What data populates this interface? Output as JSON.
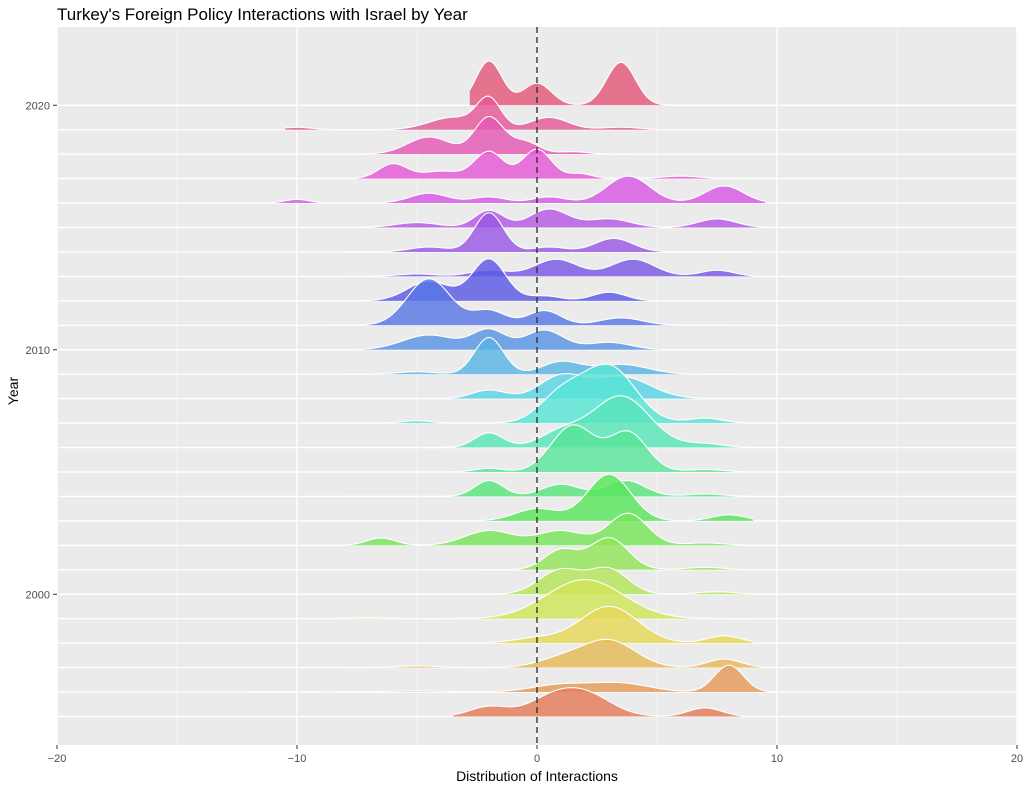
{
  "chart_data": {
    "type": "area",
    "subtype": "ridgeline",
    "title": "Turkey's Foreign Policy Interactions with Israel by Year",
    "xlabel": "Distribution of Interactions",
    "ylabel": "Year",
    "xlim": [
      -20,
      20
    ],
    "x_ticks": [
      -20,
      -10,
      0,
      10,
      20
    ],
    "x_tick_labels": [
      "−20",
      "−10",
      "0",
      "10",
      "20"
    ],
    "y_ticks": [
      2000,
      2010,
      2020
    ],
    "y_tick_labels": [
      "2000",
      "2010",
      "2020"
    ],
    "reference_line": {
      "x": 0,
      "style": "dashed"
    },
    "grid": true,
    "legend": "none",
    "series": [
      {
        "year": 1995,
        "range": [
          -3.5,
          8.5
        ],
        "peaks": [
          [
            -2,
            0.4,
            0.8
          ],
          [
            0.5,
            0.6,
            1.0
          ],
          [
            2,
            0.9,
            1.1
          ],
          [
            7,
            0.35,
            0.7
          ]
        ]
      },
      {
        "year": 1996,
        "range": [
          -12,
          10
        ],
        "peaks": [
          [
            -5,
            0.04,
            1.5
          ],
          [
            1,
            0.3,
            1.2
          ],
          [
            3.5,
            0.35,
            1.2
          ],
          [
            8,
            1.1,
            0.6
          ]
        ]
      },
      {
        "year": 1997,
        "range": [
          -8,
          9.5
        ],
        "peaks": [
          [
            -5,
            0.07,
            0.8
          ],
          [
            1,
            0.35,
            1.0
          ],
          [
            3,
            1.1,
            1.1
          ],
          [
            7.8,
            0.35,
            0.7
          ]
        ]
      },
      {
        "year": 1998,
        "range": [
          -3,
          9
        ],
        "peaks": [
          [
            0,
            0.2,
            1.0
          ],
          [
            3,
            1.5,
            1.2
          ],
          [
            7.8,
            0.3,
            0.7
          ]
        ]
      },
      {
        "year": 1999,
        "range": [
          -9,
          9
        ],
        "peaks": [
          [
            -7,
            0.04,
            0.8
          ],
          [
            2,
            1.6,
            1.6
          ]
        ]
      },
      {
        "year": 2000,
        "range": [
          -2.5,
          9
        ],
        "peaks": [
          [
            1,
            1.0,
            0.9
          ],
          [
            3,
            1.0,
            0.8
          ],
          [
            7.5,
            0.1,
            0.8
          ]
        ]
      },
      {
        "year": 2001,
        "range": [
          -2.5,
          8.5
        ],
        "peaks": [
          [
            1,
            0.8,
            0.7
          ],
          [
            3,
            1.3,
            0.8
          ],
          [
            7,
            0.1,
            0.8
          ]
        ]
      },
      {
        "year": 2002,
        "range": [
          -8,
          8.5
        ],
        "peaks": [
          [
            -6.5,
            0.3,
            0.6
          ],
          [
            -2,
            0.6,
            1.0
          ],
          [
            1,
            0.6,
            1.0
          ],
          [
            3.8,
            1.3,
            0.8
          ],
          [
            7,
            0.1,
            0.8
          ]
        ]
      },
      {
        "year": 2003,
        "range": [
          -5,
          9
        ],
        "peaks": [
          [
            0,
            0.5,
            0.9
          ],
          [
            3,
            1.9,
            0.9
          ],
          [
            8,
            0.25,
            0.7
          ]
        ]
      },
      {
        "year": 2004,
        "range": [
          -8,
          9
        ],
        "peaks": [
          [
            -2,
            0.65,
            0.6
          ],
          [
            1,
            0.5,
            0.8
          ],
          [
            3.7,
            0.65,
            0.8
          ],
          [
            7,
            0.1,
            0.8
          ]
        ]
      },
      {
        "year": 2005,
        "range": [
          -4,
          8.5
        ],
        "peaks": [
          [
            -2,
            0.15,
            0.6
          ],
          [
            1.5,
            1.9,
            0.9
          ],
          [
            3.8,
            1.6,
            0.8
          ],
          [
            7,
            0.1,
            0.8
          ]
        ]
      },
      {
        "year": 2006,
        "range": [
          -5,
          9
        ],
        "peaks": [
          [
            -2,
            0.6,
            0.6
          ],
          [
            1,
            0.6,
            0.9
          ],
          [
            3.5,
            2.1,
            1.2
          ],
          [
            7,
            0.15,
            0.8
          ]
        ]
      },
      {
        "year": 2007,
        "range": [
          -8,
          9
        ],
        "peaks": [
          [
            -5,
            0.1,
            0.6
          ],
          [
            1,
            1.1,
            0.9
          ],
          [
            3,
            2.3,
            1.1
          ],
          [
            7,
            0.2,
            0.7
          ]
        ]
      },
      {
        "year": 2008,
        "range": [
          -5,
          8.5
        ],
        "peaks": [
          [
            -2,
            0.35,
            0.7
          ],
          [
            1,
            0.9,
            0.9
          ],
          [
            3.5,
            0.9,
            1.2
          ]
        ]
      },
      {
        "year": 2009,
        "range": [
          -8,
          8.5
        ],
        "peaks": [
          [
            -5,
            0.1,
            0.8
          ],
          [
            -2,
            1.5,
            0.6
          ],
          [
            1,
            0.5,
            0.8
          ],
          [
            3.5,
            0.4,
            1.1
          ]
        ]
      },
      {
        "year": 2010,
        "range": [
          -7.5,
          8
        ],
        "peaks": [
          [
            -4.5,
            0.6,
            1.1
          ],
          [
            -2,
            0.8,
            0.7
          ],
          [
            0.3,
            0.8,
            0.8
          ],
          [
            3,
            0.3,
            0.9
          ]
        ]
      },
      {
        "year": 2011,
        "range": [
          -9,
          8
        ],
        "peaks": [
          [
            -4.5,
            1.9,
            0.9
          ],
          [
            -2,
            0.6,
            0.7
          ],
          [
            0.3,
            0.6,
            0.7
          ],
          [
            3.5,
            0.3,
            0.9
          ]
        ]
      },
      {
        "year": 2012,
        "range": [
          -7.5,
          5
        ],
        "peaks": [
          [
            -4.5,
            0.8,
            0.9
          ],
          [
            -2,
            1.7,
            0.7
          ],
          [
            0.3,
            0.2,
            0.7
          ],
          [
            3,
            0.35,
            0.7
          ]
        ]
      },
      {
        "year": 2013,
        "range": [
          -8,
          9
        ],
        "peaks": [
          [
            -5,
            0.1,
            0.8
          ],
          [
            -2,
            0.25,
            0.8
          ],
          [
            0.8,
            0.7,
            0.9
          ],
          [
            4,
            0.7,
            0.9
          ],
          [
            7.5,
            0.25,
            0.7
          ]
        ]
      },
      {
        "year": 2014,
        "range": [
          -8,
          9
        ],
        "peaks": [
          [
            -4.5,
            0.2,
            0.8
          ],
          [
            -2,
            1.6,
            0.6
          ],
          [
            0.5,
            0.2,
            0.7
          ],
          [
            3.2,
            0.55,
            0.8
          ]
        ]
      },
      {
        "year": 2015,
        "range": [
          -8.5,
          9.5
        ],
        "peaks": [
          [
            -5,
            0.2,
            0.9
          ],
          [
            -2,
            0.7,
            0.6
          ],
          [
            0.5,
            0.75,
            0.8
          ],
          [
            3,
            0.35,
            0.9
          ],
          [
            7.5,
            0.35,
            0.8
          ]
        ]
      },
      {
        "year": 2016,
        "range": [
          -11.5,
          9.5
        ],
        "peaks": [
          [
            -10,
            0.15,
            0.5
          ],
          [
            -4.5,
            0.4,
            0.8
          ],
          [
            -2,
            0.25,
            0.7
          ],
          [
            0.5,
            0.25,
            0.7
          ],
          [
            3.8,
            1.1,
            0.9
          ],
          [
            7.8,
            0.7,
            0.8
          ]
        ]
      },
      {
        "year": 2017,
        "range": [
          -7.5,
          8.5
        ],
        "peaks": [
          [
            -6,
            0.6,
            0.6
          ],
          [
            -4,
            0.3,
            0.8
          ],
          [
            -2,
            1.1,
            0.6
          ],
          [
            0,
            1.2,
            0.6
          ],
          [
            1.8,
            0.2,
            0.5
          ],
          [
            6,
            0.1,
            0.8
          ]
        ]
      },
      {
        "year": 2018,
        "range": [
          -7.5,
          4
        ],
        "peaks": [
          [
            -4.5,
            0.7,
            0.9
          ],
          [
            -2,
            1.5,
            0.6
          ],
          [
            -0.5,
            0.5,
            0.6
          ],
          [
            1.5,
            0.1,
            0.6
          ]
        ]
      },
      {
        "year": 2019,
        "range": [
          -10.5,
          5
        ],
        "peaks": [
          [
            -10,
            0.1,
            0.6
          ],
          [
            -3.5,
            0.5,
            1.0
          ],
          [
            -2,
            1.2,
            0.5
          ],
          [
            0.5,
            0.5,
            0.8
          ],
          [
            3.5,
            0.1,
            0.8
          ]
        ]
      },
      {
        "year": 2020,
        "range": [
          -2.8,
          5.5
        ],
        "peaks": [
          [
            -2,
            1.8,
            0.55
          ],
          [
            0,
            0.9,
            0.6
          ],
          [
            3.5,
            1.75,
            0.6
          ]
        ]
      }
    ]
  }
}
